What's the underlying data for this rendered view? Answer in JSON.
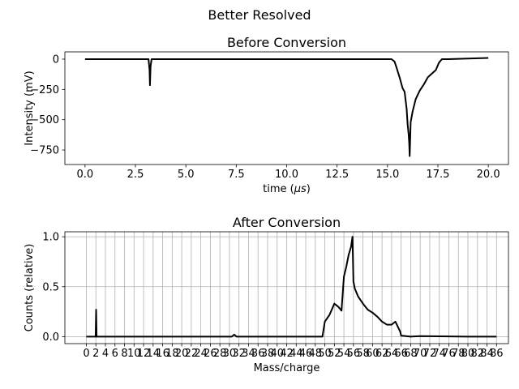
{
  "figure": {
    "suptitle": "Better Resolved"
  },
  "chart_data": [
    {
      "type": "line",
      "title": "Before Conversion",
      "xlabel": "time (",
      "xlabel_math": "μs",
      "xlabel_end": ")",
      "ylabel": "Intensity (mV)",
      "xlim": [
        -1.0,
        21.0
      ],
      "ylim": [
        -870,
        60
      ],
      "xticks": [
        0,
        2.5,
        5,
        7.5,
        10,
        12.5,
        15,
        17.5,
        20
      ],
      "xtick_labels": [
        "0.0",
        "2.5",
        "5.0",
        "7.5",
        "10.0",
        "12.5",
        "15.0",
        "17.5",
        "20.0"
      ],
      "yticks": [
        0,
        -250,
        -500,
        -750
      ],
      "ytick_labels": [
        "0",
        "−250",
        "−500",
        "−750"
      ],
      "grid": false,
      "line_color": "#000000",
      "series": [
        {
          "x": [
            0.0,
            3.15,
            3.2,
            3.22,
            3.25,
            3.3,
            15.2,
            15.35,
            15.45,
            15.6,
            15.75,
            15.85,
            15.95,
            16.0,
            16.05,
            16.08,
            16.1,
            16.15,
            16.25,
            16.4,
            16.6,
            16.8,
            17.0,
            17.2,
            17.4,
            17.55,
            17.7,
            18.0,
            20.0
          ],
          "y": [
            0,
            0,
            -90,
            -215,
            -60,
            0,
            0,
            -20,
            -70,
            -150,
            -240,
            -270,
            -410,
            -540,
            -620,
            -700,
            -800,
            -520,
            -430,
            -330,
            -260,
            -210,
            -150,
            -120,
            -90,
            -30,
            0,
            0,
            10
          ]
        }
      ]
    },
    {
      "type": "line",
      "title": "After Conversion",
      "xlabel": "Mass/charge",
      "ylabel": "Counts (relative)",
      "xlim": [
        -4.5,
        88.5
      ],
      "ylim": [
        -0.07,
        1.05
      ],
      "xticks": [
        0,
        2,
        4,
        6,
        8,
        10,
        12,
        14,
        16,
        18,
        20,
        22,
        24,
        26,
        28,
        30,
        32,
        34,
        36,
        38,
        40,
        42,
        44,
        46,
        48,
        50,
        52,
        54,
        56,
        58,
        60,
        62,
        64,
        66,
        68,
        70,
        72,
        74,
        76,
        78,
        80,
        82,
        84,
        86
      ],
      "xtick_labels": [
        "0",
        "2",
        "4",
        "6",
        "8",
        "10",
        "12",
        "14",
        "16",
        "18",
        "20",
        "22",
        "24",
        "26",
        "28",
        "30",
        "32",
        "34",
        "36",
        "38",
        "40",
        "42",
        "44",
        "46",
        "48",
        "50",
        "52",
        "54",
        "56",
        "58",
        "60",
        "62",
        "64",
        "66",
        "68",
        "70",
        "72",
        "74",
        "76",
        "78",
        "80",
        "82",
        "84",
        "86"
      ],
      "yticks": [
        0.0,
        0.5,
        1.0
      ],
      "ytick_labels": [
        "0.0",
        "0.5",
        "1.0"
      ],
      "grid": true,
      "line_color": "#000000",
      "series": [
        {
          "x": [
            0.0,
            1.95,
            2.05,
            2.15,
            2.3,
            30.5,
            31.0,
            31.5,
            49.5,
            50.0,
            51.0,
            52.0,
            52.8,
            53.5,
            54.0,
            54.5,
            55.0,
            55.5,
            55.8,
            56.0,
            56.3,
            57.0,
            58.0,
            59.0,
            60.0,
            61.0,
            62.0,
            63.0,
            64.0,
            64.8,
            65.3,
            65.8,
            66.0,
            68.0,
            70.0,
            80.0,
            86.0
          ],
          "y": [
            0.0,
            0.0,
            0.27,
            0.0,
            0.0,
            0.0,
            0.02,
            0.0,
            0.0,
            0.15,
            0.22,
            0.33,
            0.3,
            0.26,
            0.6,
            0.7,
            0.82,
            0.9,
            1.0,
            0.55,
            0.48,
            0.4,
            0.33,
            0.27,
            0.24,
            0.2,
            0.15,
            0.12,
            0.12,
            0.15,
            0.1,
            0.05,
            0.01,
            0.0,
            0.005,
            0.0,
            0.0
          ]
        }
      ]
    }
  ]
}
